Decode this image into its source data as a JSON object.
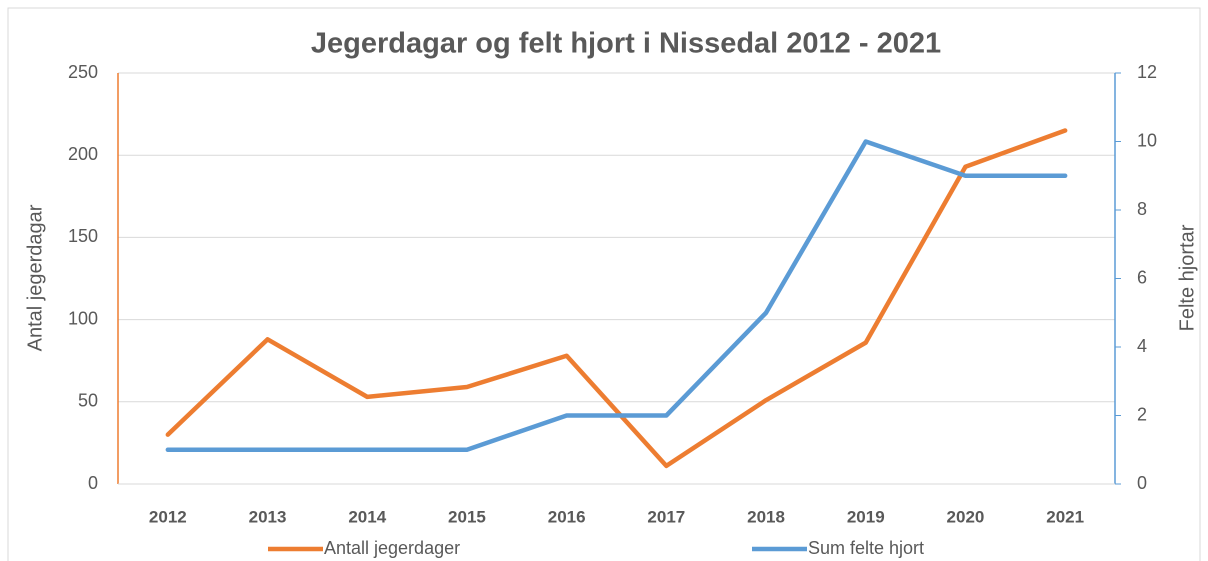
{
  "chart_data": {
    "type": "line",
    "title": "Jegerdagar og felt hjort i Nissedal 2012 - 2021",
    "categories": [
      "2012",
      "2013",
      "2014",
      "2015",
      "2016",
      "2017",
      "2018",
      "2019",
      "2020",
      "2021"
    ],
    "ylabel": "Antal jegerdagar",
    "y2label": "Felte hjortar",
    "ylim": [
      0,
      250
    ],
    "yticks": [
      0,
      50,
      100,
      150,
      200,
      250
    ],
    "y2lim": [
      0,
      12
    ],
    "y2ticks": [
      0,
      2,
      4,
      6,
      8,
      10,
      12
    ],
    "grid": true,
    "legend": "bottom",
    "series": [
      {
        "name": "Antall jegerdager",
        "color": "#ed7d31",
        "values": [
          30,
          88,
          53,
          59,
          78,
          11,
          51,
          86,
          193,
          215
        ]
      },
      {
        "name": "Sum felte hjort",
        "color": "#5b9bd5",
        "axis": "y2",
        "values": [
          1,
          1,
          1,
          1,
          2,
          2,
          5,
          10,
          9,
          9
        ]
      }
    ]
  }
}
